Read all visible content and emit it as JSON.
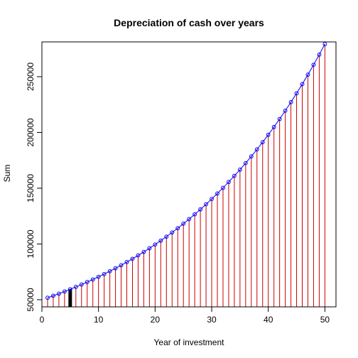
{
  "chart_data": {
    "type": "line",
    "title": "Depreciation of cash over years",
    "xlabel": "Year of investment",
    "ylabel": "Sum",
    "xlim": [
      0,
      51.96
    ],
    "ylim": [
      43600,
      281200
    ],
    "x_ticks": [
      0,
      10,
      20,
      30,
      40,
      50
    ],
    "y_ticks": [
      50000,
      100000,
      150000,
      200000,
      250000
    ],
    "x_tick_labels": [
      "0",
      "10",
      "20",
      "30",
      "40",
      "50"
    ],
    "y_tick_labels": [
      "50000",
      "100000",
      "150000",
      "200000",
      "250000"
    ],
    "grid": false,
    "colors": {
      "line": "#0000ff",
      "points": "#0000ff",
      "stems": "#cc0000",
      "highlight": "#000000",
      "frame": "#000000"
    },
    "highlight_x": 5,
    "series": [
      {
        "x": [
          1,
          2,
          3,
          4,
          5,
          6,
          7,
          8,
          9,
          10,
          11,
          12,
          13,
          14,
          15,
          16,
          17,
          18,
          19,
          20,
          21,
          22,
          23,
          24,
          25,
          26,
          27,
          28,
          29,
          30,
          31,
          32,
          33,
          34,
          35,
          36,
          37,
          38,
          39,
          40,
          41,
          42,
          43,
          44,
          45,
          46,
          47,
          48,
          49,
          50
        ],
        "values": [
          51750,
          53561,
          55436,
          57376,
          59384,
          61463,
          63614,
          65840,
          68145,
          70530,
          72998,
          75553,
          78198,
          80934,
          83767,
          86699,
          89734,
          92874,
          96125,
          99489,
          102971,
          106575,
          110305,
          114166,
          118162,
          122297,
          126578,
          131008,
          135593,
          140339,
          145251,
          150335,
          155596,
          161042,
          166678,
          172512,
          178550,
          184799,
          191267,
          197962,
          204890,
          212062,
          219484,
          227165,
          235116,
          243346,
          251863,
          260678,
          269801,
          279245
        ]
      }
    ]
  }
}
